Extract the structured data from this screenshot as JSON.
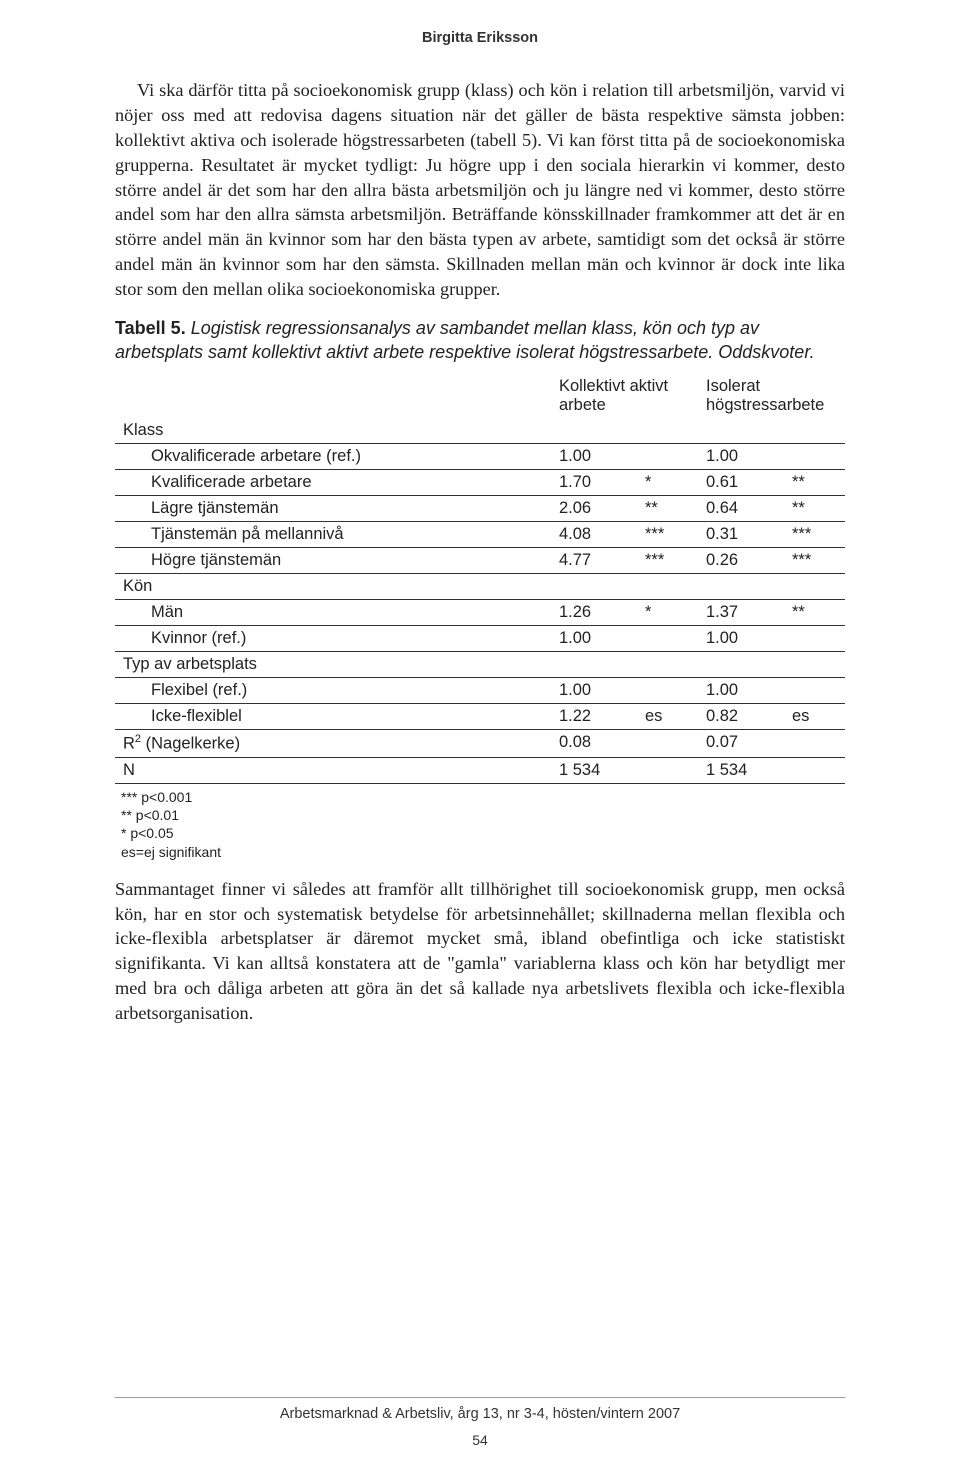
{
  "header": {
    "author": "Birgitta Eriksson"
  },
  "body": {
    "para1": "Vi ska därför titta på socioekonomisk grupp (klass) och kön i relation till arbetsmiljön, varvid vi nöjer oss med att redovisa dagens situation när det gäller de bästa respektive sämsta jobben: kollektivt aktiva och isolerade högstressarbeten (tabell 5). Vi kan först titta på de socioekonomiska grupperna. Resultatet är mycket tydligt: Ju högre upp i den sociala hierarkin vi kommer, desto större andel är det som har den allra bästa arbetsmiljön och ju längre ned vi kommer, desto större andel som har den allra sämsta arbetsmiljön. Beträffande könsskillnader framkommer att det är en större andel män än kvinnor som har den bästa typen av arbete, samtidigt som det också är större andel män än kvinnor som har den sämsta. Skillnaden mellan män och kvinnor är dock inte lika stor som den mellan olika socioekonomiska grupper.",
    "para2": "Sammantaget finner vi således att framför allt tillhörighet till socioekonomisk grupp, men också kön, har en stor och systematisk betydelse för arbetsinnehållet; skillnaderna mellan flexibla och icke-flexibla arbetsplatser är däremot mycket små, ibland obefintliga och icke statistiskt signifikanta. Vi kan alltså konstatera att de \"gamla\" variablerna klass och kön har betydligt mer med bra och dåliga arbeten att göra än det så kallade nya arbetslivets flexibla och icke-flexibla arbetsorganisation."
  },
  "table": {
    "title_bold": "Tabell 5.",
    "title_rest": "Logistisk regressionsanalys av sambandet mellan klass, kön och typ av arbetsplats samt kollektivt aktivt arbete respektive isolerat högstressarbete. Oddskvoter.",
    "col_headers": {
      "c1": "Kollektivt aktivt arbete",
      "c2": "Isolerat högstressarbete"
    },
    "groups": {
      "klass": "Klass",
      "kon": "Kön",
      "typ": "Typ av arbetsplats"
    },
    "rows": {
      "okval": {
        "label": "Okvalificerade arbetare (ref.)",
        "v1": "1.00",
        "s1": "",
        "v2": "1.00",
        "s2": ""
      },
      "kval": {
        "label": "Kvalificerade arbetare",
        "v1": "1.70",
        "s1": "*",
        "v2": "0.61",
        "s2": "**"
      },
      "lagre": {
        "label": "Lägre tjänstemän",
        "v1": "2.06",
        "s1": "**",
        "v2": "0.64",
        "s2": "**"
      },
      "mellan": {
        "label": "Tjänstemän på mellannivå",
        "v1": "4.08",
        "s1": "***",
        "v2": "0.31",
        "s2": "***"
      },
      "hogre": {
        "label": "Högre tjänstemän",
        "v1": "4.77",
        "s1": "***",
        "v2": "0.26",
        "s2": "***"
      },
      "man": {
        "label": "Män",
        "v1": "1.26",
        "s1": "*",
        "v2": "1.37",
        "s2": "**"
      },
      "kvinnor": {
        "label": "Kvinnor (ref.)",
        "v1": "1.00",
        "s1": "",
        "v2": "1.00",
        "s2": ""
      },
      "flex": {
        "label": "Flexibel (ref.)",
        "v1": "1.00",
        "s1": "",
        "v2": "1.00",
        "s2": ""
      },
      "icke": {
        "label": "Icke-flexiblel",
        "v1": "1.22",
        "s1": "es",
        "v2": "0.82",
        "s2": "es"
      },
      "r2": {
        "label": "R² (Nagelkerke)",
        "v1": "0.08",
        "s1": "",
        "v2": "0.07",
        "s2": ""
      },
      "n": {
        "label": "N",
        "v1": "1 534",
        "s1": "",
        "v2": "1 534",
        "s2": ""
      }
    },
    "footnotes": {
      "f1": "*** p<0.001",
      "f2": "**  p<0.01",
      "f3": "*   p<0.05",
      "f4": "es=ej signifikant"
    }
  },
  "footer": {
    "journal": "Arbetsmarknad & Arbetsliv, årg 13, nr 3-4, hösten/vintern 2007",
    "page": "54"
  }
}
